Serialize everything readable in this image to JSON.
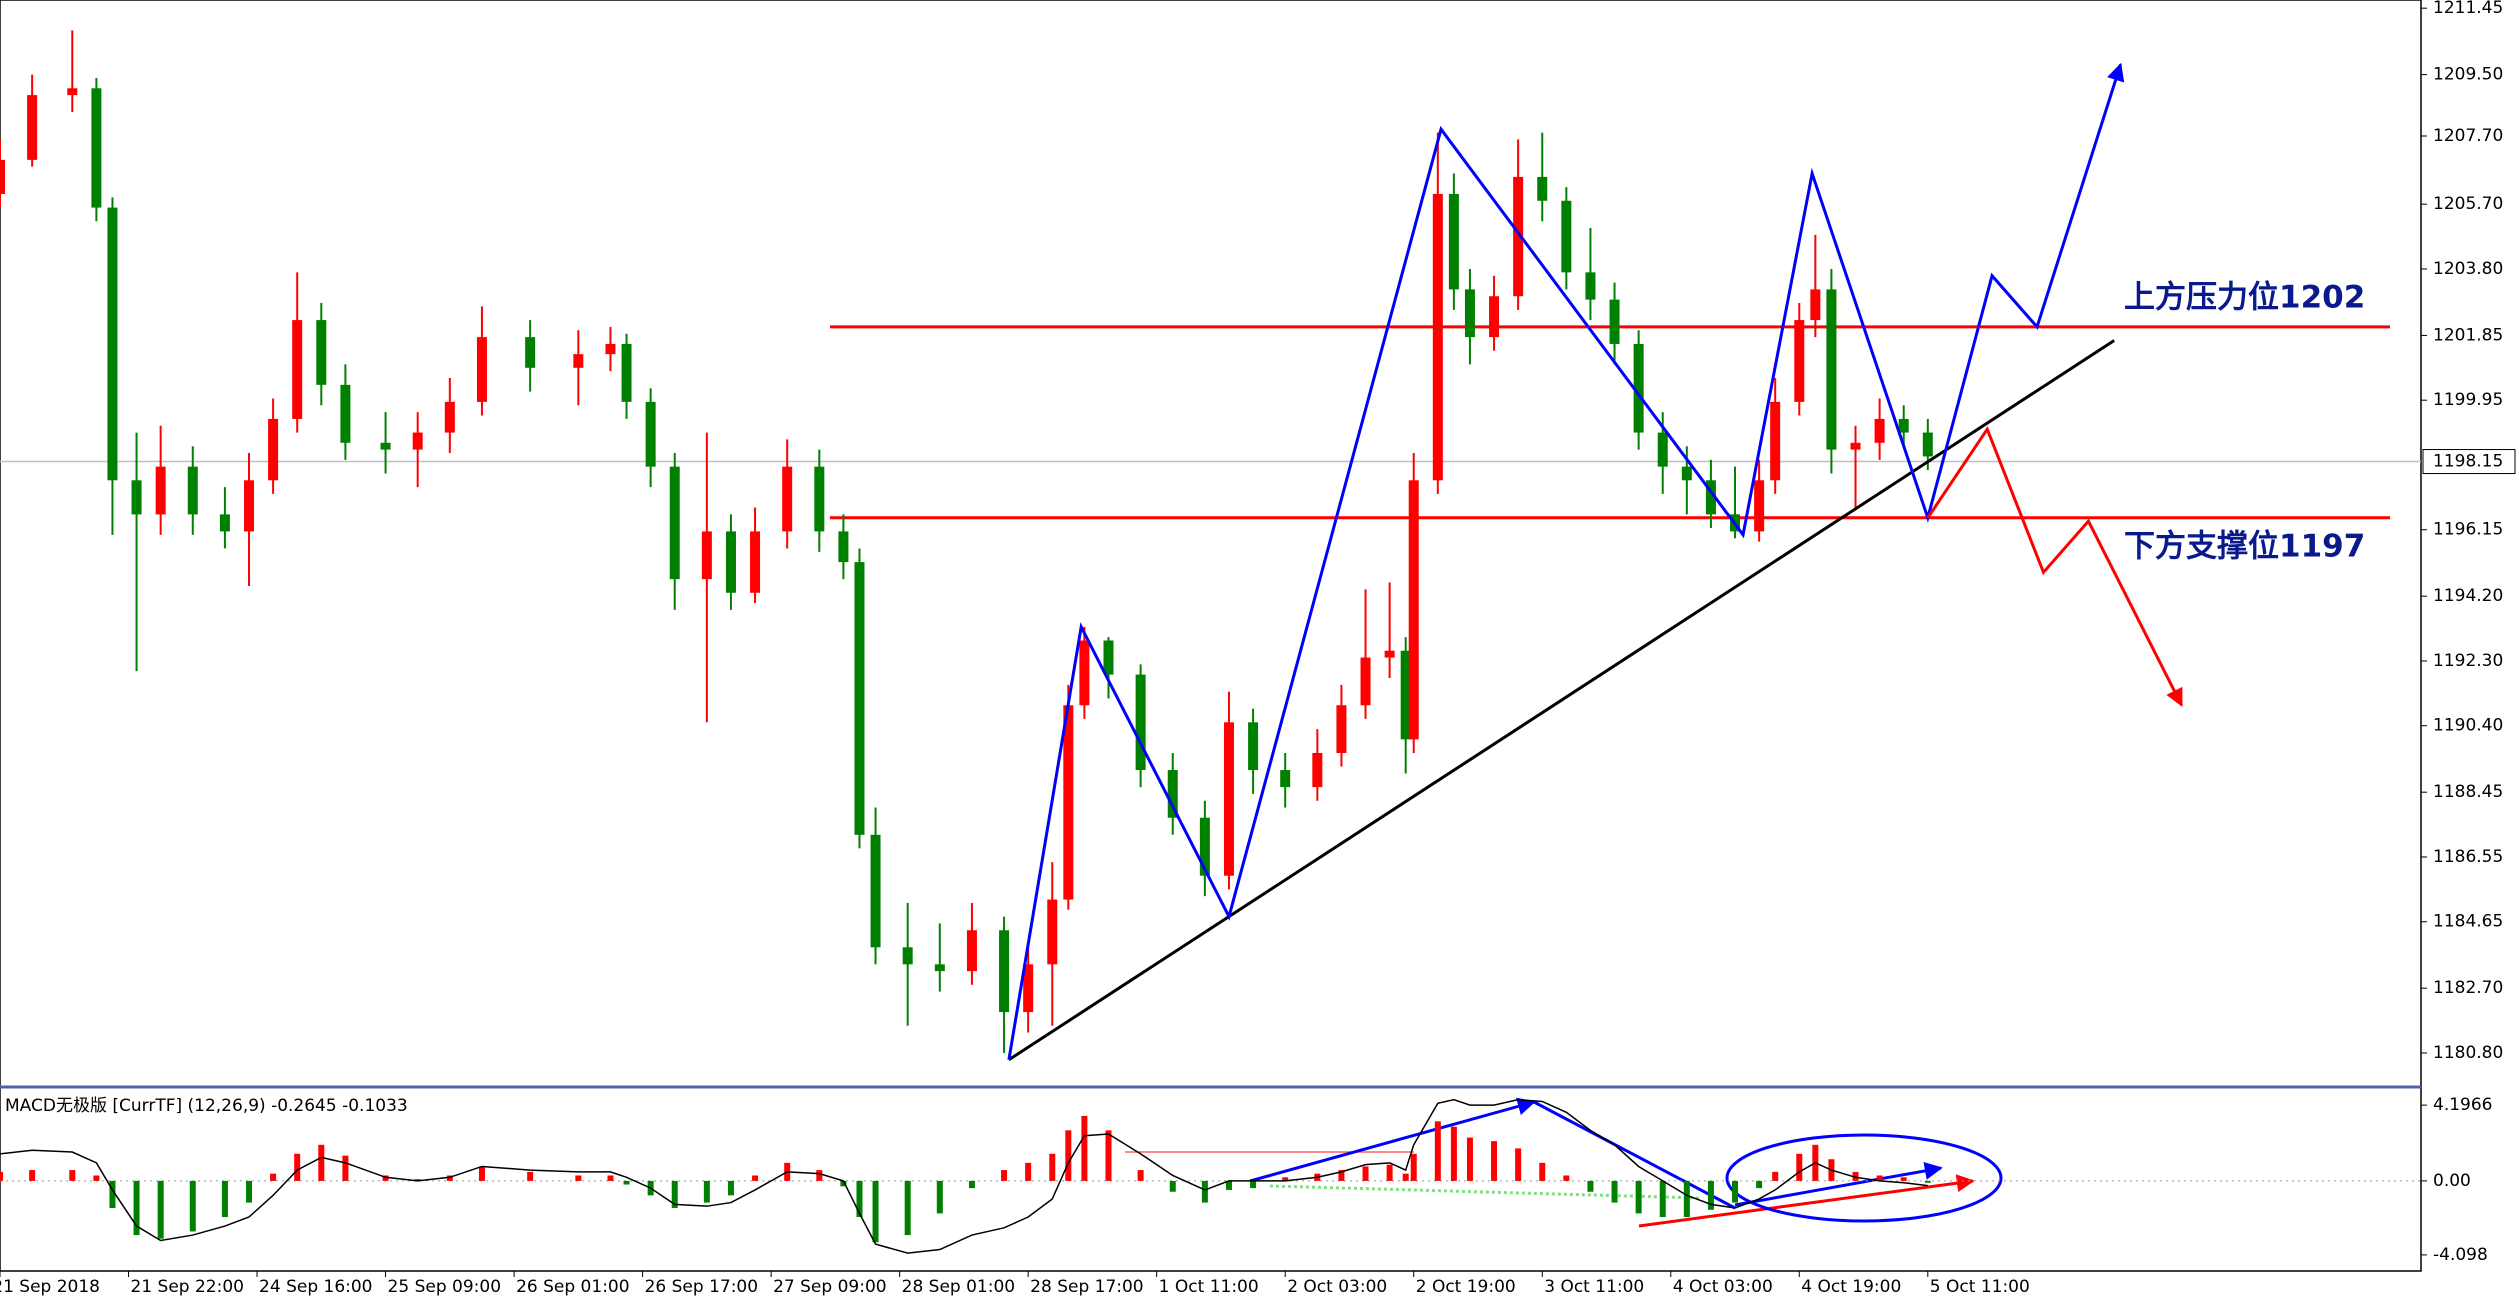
{
  "chart_data": {
    "type": "candlestick",
    "up_color": "#ff0000",
    "down_color": "#008000",
    "xlim": [
      0,
      301.4
    ],
    "xticks": [
      {
        "value": 0,
        "label": "21 Sep 2018"
      },
      {
        "value": 16,
        "label": "21 Sep 22:00"
      },
      {
        "value": 32,
        "label": "24 Sep 16:00"
      },
      {
        "value": 48,
        "label": "25 Sep 09:00"
      },
      {
        "value": 64,
        "label": "26 Sep 01:00"
      },
      {
        "value": 80,
        "label": "26 Sep 17:00"
      },
      {
        "value": 96,
        "label": "27 Sep 09:00"
      },
      {
        "value": 112,
        "label": "28 Sep 01:00"
      },
      {
        "value": 128,
        "label": "28 Sep 17:00"
      },
      {
        "value": 144,
        "label": "1 Oct 11:00"
      },
      {
        "value": 160,
        "label": "2 Oct 03:00"
      },
      {
        "value": 176,
        "label": "2 Oct 19:00"
      },
      {
        "value": 192,
        "label": "3 Oct 11:00"
      },
      {
        "value": 208,
        "label": "4 Oct 03:00"
      },
      {
        "value": 224,
        "label": "4 Oct 19:00"
      },
      {
        "value": 240,
        "label": "5 Oct 11:00"
      }
    ],
    "ylim": [
      1179.86,
      1211.69
    ],
    "yticks": [
      1211.45,
      {
        "value": 1209.5,
        "label": "1209.50"
      },
      {
        "value": 1207.7,
        "label": "1207.70"
      },
      {
        "value": 1205.7,
        "label": "1205.70"
      },
      {
        "value": 1203.8,
        "label": "1203.80"
      },
      1201.85,
      1199.95,
      1196.15,
      {
        "value": 1194.2,
        "label": "1194.20"
      },
      {
        "value": 1192.3,
        "label": "1192.30"
      },
      {
        "value": 1190.4,
        "label": "1190.40"
      },
      1188.45,
      1186.55,
      1184.65,
      {
        "value": 1182.7,
        "label": "1182.70"
      },
      {
        "value": 1180.8,
        "label": "1180.80"
      }
    ],
    "current_price": 1198.15,
    "candles": {
      "x": [
        0,
        4,
        9,
        12,
        14,
        17,
        20,
        24,
        28,
        31,
        34,
        37,
        40,
        43,
        48,
        52,
        56,
        60,
        66,
        72,
        76,
        78,
        81,
        84,
        88,
        91,
        94,
        98,
        102,
        105,
        107,
        109,
        113,
        117,
        121,
        125,
        128,
        131,
        133,
        135,
        138,
        142,
        146,
        150,
        153,
        156,
        160,
        164,
        167,
        170,
        173,
        175,
        176,
        179,
        181,
        183,
        186,
        189,
        192,
        195,
        198,
        201,
        204,
        207,
        210,
        213,
        216,
        219,
        221,
        224,
        226,
        228,
        231,
        234,
        237,
        240
      ],
      "open": [
        1206.0,
        1207.0,
        1208.9,
        1209.1,
        1205.6,
        1197.6,
        1196.6,
        1198.0,
        1196.6,
        1196.1,
        1197.6,
        1199.4,
        1202.3,
        1200.4,
        1198.7,
        1198.5,
        1199.0,
        1199.9,
        1201.8,
        1200.9,
        1201.3,
        1201.6,
        1199.9,
        1198.0,
        1194.7,
        1196.1,
        1194.3,
        1196.1,
        1198.0,
        1196.1,
        1195.2,
        1187.2,
        1183.9,
        1183.4,
        1183.2,
        1184.4,
        1182.0,
        1183.4,
        1185.3,
        1191.0,
        1192.9,
        1191.9,
        1189.1,
        1187.7,
        1186.0,
        1190.5,
        1189.1,
        1188.6,
        1189.6,
        1191.0,
        1192.4,
        1192.6,
        1190.0,
        1197.6,
        1206.0,
        1203.2,
        1201.8,
        1203.0,
        1206.5,
        1205.8,
        1203.7,
        1202.9,
        1201.6,
        1199.0,
        1198.0,
        1197.6,
        1196.6,
        1196.1,
        1197.6,
        1199.9,
        1202.3,
        1203.2,
        1198.5,
        1198.7,
        1199.4,
        1199.0
      ],
      "high": [
        1207.6,
        1209.5,
        1210.8,
        1209.4,
        1205.9,
        1199.0,
        1199.2,
        1198.6,
        1197.4,
        1198.4,
        1200.0,
        1203.7,
        1202.8,
        1201.0,
        1199.6,
        1199.6,
        1200.6,
        1202.7,
        1202.3,
        1202.0,
        1202.1,
        1201.9,
        1200.3,
        1198.4,
        1199.0,
        1196.6,
        1196.8,
        1198.8,
        1198.5,
        1196.6,
        1195.6,
        1188.0,
        1185.2,
        1184.6,
        1185.2,
        1184.8,
        1184.0,
        1186.4,
        1191.6,
        1193.3,
        1193.0,
        1192.2,
        1189.6,
        1188.2,
        1191.4,
        1190.9,
        1189.6,
        1190.3,
        1191.6,
        1194.4,
        1194.6,
        1193.0,
        1198.4,
        1207.8,
        1206.6,
        1203.8,
        1203.6,
        1207.6,
        1207.8,
        1206.2,
        1205.0,
        1203.4,
        1202.0,
        1199.6,
        1198.6,
        1198.2,
        1198.0,
        1198.2,
        1200.6,
        1202.8,
        1204.8,
        1203.8,
        1199.2,
        1200.0,
        1199.8,
        1199.4
      ],
      "low": [
        1205.6,
        1206.8,
        1208.4,
        1205.2,
        1196.0,
        1192.0,
        1196.0,
        1196.0,
        1195.6,
        1194.5,
        1197.2,
        1199.0,
        1199.8,
        1198.2,
        1197.8,
        1197.4,
        1198.4,
        1199.5,
        1200.2,
        1199.8,
        1200.8,
        1199.4,
        1197.4,
        1193.8,
        1190.5,
        1193.8,
        1194.0,
        1195.6,
        1195.5,
        1194.7,
        1186.8,
        1183.4,
        1181.6,
        1182.6,
        1182.8,
        1180.8,
        1181.4,
        1181.6,
        1185.0,
        1190.6,
        1191.2,
        1188.6,
        1187.2,
        1185.4,
        1185.6,
        1188.4,
        1188.0,
        1188.2,
        1189.2,
        1190.6,
        1191.8,
        1189.0,
        1189.6,
        1197.2,
        1202.6,
        1201.0,
        1201.4,
        1202.6,
        1205.2,
        1203.2,
        1202.3,
        1201.0,
        1198.5,
        1197.2,
        1196.6,
        1196.2,
        1195.9,
        1195.8,
        1197.2,
        1199.5,
        1201.8,
        1197.8,
        1196.8,
        1198.2,
        1198.6,
        1197.9
      ],
      "close": [
        1207.0,
        1208.9,
        1209.1,
        1205.6,
        1197.6,
        1196.6,
        1198.0,
        1196.6,
        1196.1,
        1197.6,
        1199.4,
        1202.3,
        1200.4,
        1198.7,
        1198.5,
        1199.0,
        1199.9,
        1201.8,
        1200.9,
        1201.3,
        1201.6,
        1199.9,
        1198.0,
        1194.7,
        1196.1,
        1194.3,
        1196.1,
        1198.0,
        1196.1,
        1195.2,
        1187.2,
        1183.9,
        1183.4,
        1183.2,
        1184.4,
        1182.0,
        1183.4,
        1185.3,
        1191.0,
        1192.9,
        1191.9,
        1189.1,
        1187.7,
        1186.0,
        1190.5,
        1189.1,
        1188.6,
        1189.6,
        1191.0,
        1192.4,
        1192.6,
        1190.0,
        1197.6,
        1206.0,
        1203.2,
        1201.8,
        1203.0,
        1206.5,
        1205.8,
        1203.7,
        1202.9,
        1201.6,
        1199.0,
        1198.0,
        1197.6,
        1196.6,
        1196.1,
        1197.6,
        1199.9,
        1202.3,
        1203.2,
        1198.5,
        1198.7,
        1199.4,
        1199.0,
        1198.3
      ]
    },
    "levels": [
      {
        "value": 1202.1,
        "label": "上方压力位1202",
        "color": "#ff0000"
      },
      {
        "value": 1196.5,
        "label": "下方支撑位1197",
        "color": "#ff0000"
      }
    ],
    "lines": [
      {
        "color": "#000000",
        "arrow": false,
        "points": [
          [
            125.6,
            1180.6
          ],
          [
            263.2,
            1201.7
          ]
        ]
      },
      {
        "color": "#0000ff",
        "arrow": true,
        "points": [
          [
            125.6,
            1180.6
          ],
          [
            134.6,
            1193.3
          ],
          [
            153,
            1184.8
          ],
          [
            179.4,
            1207.9
          ],
          [
            217,
            1196.0
          ],
          [
            225.6,
            1206.6
          ],
          [
            240,
            1196.5
          ],
          [
            248,
            1203.6
          ],
          [
            253.6,
            1202.1
          ],
          [
            264,
            1209.8
          ]
        ]
      },
      {
        "color": "#ff0000",
        "arrow": true,
        "points": [
          [
            240,
            1196.5
          ],
          [
            247.4,
            1199.1
          ],
          [
            254.4,
            1194.9
          ],
          [
            260,
            1196.4
          ],
          [
            271.6,
            1191.0
          ]
        ]
      }
    ],
    "indicator": {
      "title": "MACD无极版 [CurrTF] (12,26,9) -0.2645 -0.1033",
      "ylim": [
        -4.99,
        5.09
      ],
      "yticks": [
        4.1966,
        {
          "value": 0,
          "label": "0.00"
        },
        -4.098
      ],
      "line_color": "#000000",
      "histogram": [
        0.5,
        0.6,
        0.6,
        0.3,
        -1.5,
        -3.0,
        -3.2,
        -2.8,
        -2.0,
        -1.2,
        0.4,
        1.5,
        2.0,
        1.4,
        0.3,
        0.1,
        0.3,
        0.8,
        0.5,
        0.3,
        0.3,
        -0.2,
        -0.8,
        -1.5,
        -1.2,
        -0.8,
        0.3,
        1.0,
        0.6,
        -0.3,
        -2.0,
        -3.4,
        -3.0,
        -1.8,
        -0.4,
        0.6,
        1.0,
        1.5,
        2.8,
        3.6,
        2.8,
        0.6,
        -0.6,
        -1.2,
        -0.5,
        -0.4,
        0.2,
        0.4,
        0.6,
        0.8,
        0.9,
        0.4,
        1.5,
        3.3,
        3.0,
        2.4,
        2.2,
        1.8,
        1.0,
        0.3,
        -0.6,
        -1.2,
        -1.8,
        -2.0,
        -2.0,
        -1.6,
        -1.2,
        -0.4,
        0.5,
        1.5,
        2.0,
        1.2,
        0.5,
        0.3,
        0.2,
        -0.1
      ],
      "macd": [
        1.5,
        1.7,
        1.6,
        1.0,
        -0.5,
        -2.5,
        -3.3,
        -3.0,
        -2.5,
        -2.0,
        -0.8,
        0.6,
        1.3,
        1.0,
        0.2,
        0.0,
        0.2,
        0.8,
        0.6,
        0.5,
        0.5,
        0.2,
        -0.4,
        -1.3,
        -1.4,
        -1.2,
        -0.5,
        0.5,
        0.4,
        0.0,
        -1.8,
        -3.5,
        -4.0,
        -3.8,
        -3.0,
        -2.6,
        -2.0,
        -1.0,
        1.0,
        2.5,
        2.6,
        1.5,
        0.3,
        -0.5,
        0.0,
        0.0,
        0.0,
        0.2,
        0.5,
        0.9,
        1.0,
        0.6,
        2.0,
        4.3,
        4.5,
        4.2,
        4.2,
        4.5,
        4.4,
        3.8,
        2.8,
        2.0,
        0.8,
        0.0,
        -0.8,
        -1.3,
        -1.5,
        -1.0,
        -0.5,
        0.5,
        1.0,
        0.6,
        0.2,
        0.0,
        -0.1,
        -0.26
      ]
    }
  }
}
